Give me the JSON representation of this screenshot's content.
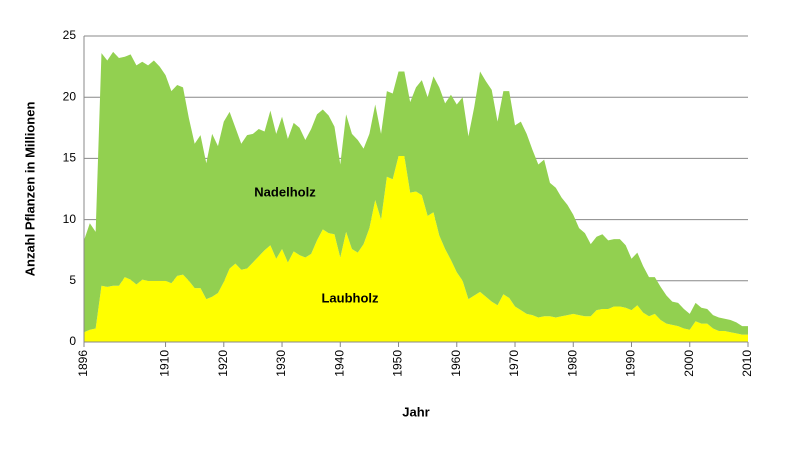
{
  "chart_data": {
    "type": "stacked_area",
    "x_label": "Jahr",
    "y_label": "Anzahl  Pflanzen in Millionen",
    "x": [
      1896,
      1897,
      1898,
      1899,
      1900,
      1901,
      1902,
      1903,
      1904,
      1905,
      1906,
      1907,
      1908,
      1909,
      1910,
      1911,
      1912,
      1913,
      1914,
      1915,
      1916,
      1917,
      1918,
      1919,
      1920,
      1921,
      1922,
      1923,
      1924,
      1925,
      1926,
      1927,
      1928,
      1929,
      1930,
      1931,
      1932,
      1933,
      1934,
      1935,
      1936,
      1937,
      1938,
      1939,
      1940,
      1941,
      1942,
      1943,
      1944,
      1945,
      1946,
      1947,
      1948,
      1949,
      1950,
      1951,
      1952,
      1953,
      1954,
      1955,
      1956,
      1957,
      1958,
      1959,
      1960,
      1961,
      1962,
      1963,
      1964,
      1965,
      1966,
      1967,
      1968,
      1969,
      1970,
      1971,
      1972,
      1973,
      1974,
      1975,
      1976,
      1977,
      1978,
      1979,
      1980,
      1981,
      1982,
      1983,
      1984,
      1985,
      1986,
      1987,
      1988,
      1989,
      1990,
      1991,
      1992,
      1993,
      1994,
      1995,
      1996,
      1997,
      1998,
      1999,
      2000,
      2001,
      2002,
      2003,
      2004,
      2005,
      2006,
      2007,
      2008,
      2009,
      2010
    ],
    "series": [
      {
        "name": "Laubholz",
        "color": "#ffff00",
        "values": [
          0.8,
          1.0,
          1.1,
          4.6,
          4.5,
          4.6,
          4.6,
          5.3,
          5.1,
          4.7,
          5.1,
          5.0,
          5.0,
          5.0,
          5.0,
          4.8,
          5.4,
          5.5,
          5.0,
          4.4,
          4.4,
          3.5,
          3.7,
          4.0,
          4.9,
          6.0,
          6.4,
          5.9,
          6.0,
          6.5,
          7.0,
          7.5,
          7.9,
          6.8,
          7.6,
          6.5,
          7.4,
          7.1,
          6.9,
          7.2,
          8.3,
          9.2,
          8.9,
          8.8,
          6.9,
          9.0,
          7.6,
          7.3,
          8.0,
          9.3,
          11.6,
          10.0,
          13.5,
          13.3,
          15.2,
          15.2,
          12.2,
          12.3,
          12.0,
          10.3,
          10.6,
          8.7,
          7.6,
          6.7,
          5.7,
          5.0,
          3.5,
          3.8,
          4.1,
          3.7,
          3.3,
          3.0,
          3.9,
          3.6,
          2.9,
          2.6,
          2.3,
          2.2,
          2.0,
          2.1,
          2.1,
          2.0,
          2.1,
          2.2,
          2.3,
          2.2,
          2.1,
          2.1,
          2.6,
          2.7,
          2.7,
          2.9,
          2.9,
          2.8,
          2.6,
          3.0,
          2.4,
          2.1,
          2.3,
          1.8,
          1.5,
          1.4,
          1.3,
          1.1,
          1.0,
          1.7,
          1.5,
          1.5,
          1.1,
          0.9,
          0.9,
          0.8,
          0.7,
          0.6,
          0.6
        ]
      },
      {
        "name": "Nadelholz",
        "color": "#92d050",
        "values": [
          7.5,
          8.7,
          7.9,
          19.0,
          18.5,
          19.1,
          18.6,
          18.0,
          18.4,
          17.9,
          17.8,
          17.6,
          18.0,
          17.5,
          16.8,
          15.7,
          15.6,
          15.3,
          13.3,
          11.8,
          12.5,
          11.1,
          13.3,
          12.0,
          13.1,
          12.8,
          11.1,
          10.3,
          10.9,
          10.5,
          10.4,
          9.7,
          11.0,
          10.2,
          10.8,
          10.1,
          10.5,
          10.4,
          9.6,
          10.2,
          10.3,
          9.8,
          9.6,
          8.8,
          7.6,
          9.6,
          9.4,
          9.2,
          7.8,
          7.7,
          7.8,
          7.0,
          7.0,
          7.0,
          6.9,
          6.9,
          7.4,
          8.5,
          9.4,
          9.7,
          11.1,
          12.1,
          11.9,
          13.5,
          13.7,
          15.0,
          13.3,
          15.4,
          18.0,
          17.6,
          17.3,
          15.0,
          16.6,
          16.9,
          14.8,
          15.4,
          14.7,
          13.5,
          12.5,
          12.8,
          10.9,
          10.6,
          9.7,
          9.0,
          8.1,
          7.1,
          6.8,
          5.9,
          6.0,
          6.1,
          5.6,
          5.5,
          5.5,
          5.1,
          4.2,
          4.3,
          3.8,
          3.2,
          3.0,
          2.7,
          2.3,
          1.9,
          1.9,
          1.6,
          1.3,
          1.5,
          1.3,
          1.2,
          1.1,
          1.1,
          1.0,
          1.0,
          0.9,
          0.7,
          0.7
        ]
      }
    ],
    "xlim": [
      1896,
      2010
    ],
    "xticks": [
      1896,
      1910,
      1920,
      1930,
      1940,
      1950,
      1960,
      1970,
      1980,
      1990,
      2000,
      2010
    ],
    "ylim": [
      0,
      25
    ],
    "yticks": [
      0,
      5,
      10,
      15,
      20,
      25
    ],
    "grid": true
  }
}
